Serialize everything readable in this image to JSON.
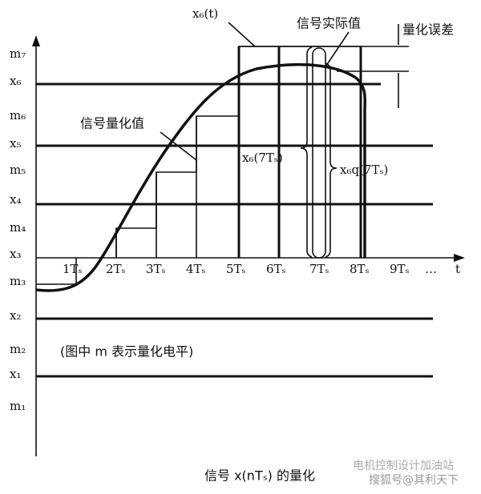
{
  "level_labels": [
    "m₇",
    "x₆",
    "m₆",
    "x₅",
    "m₅",
    "x₄",
    "m₄",
    "x₃",
    "m₃",
    "x₂",
    "m₂",
    "x₁",
    "m₁"
  ],
  "time_labels": [
    "1Tₛ",
    "2Tₛ",
    "3Tₛ",
    "4Tₛ",
    "5Tₛ",
    "6Tₛ",
    "7Tₛ",
    "8Tₛ",
    "9Tₛ",
    "…",
    "t"
  ],
  "annotations": {
    "signal": "x₆(t)",
    "actual_value": "信号实际值",
    "quantization_error": "量化误差",
    "quantized_value": "信号量化值",
    "sample_value": "x₆(7Tₛ)",
    "quantized_sample": "x₆q(7Tₛ)",
    "note": "(图中 m 表示量化电平)"
  },
  "caption": "信号 x(nTₛ) 的量化",
  "watermark": [
    "电机控制设计加油站",
    "搜狐号@其利天下"
  ]
}
